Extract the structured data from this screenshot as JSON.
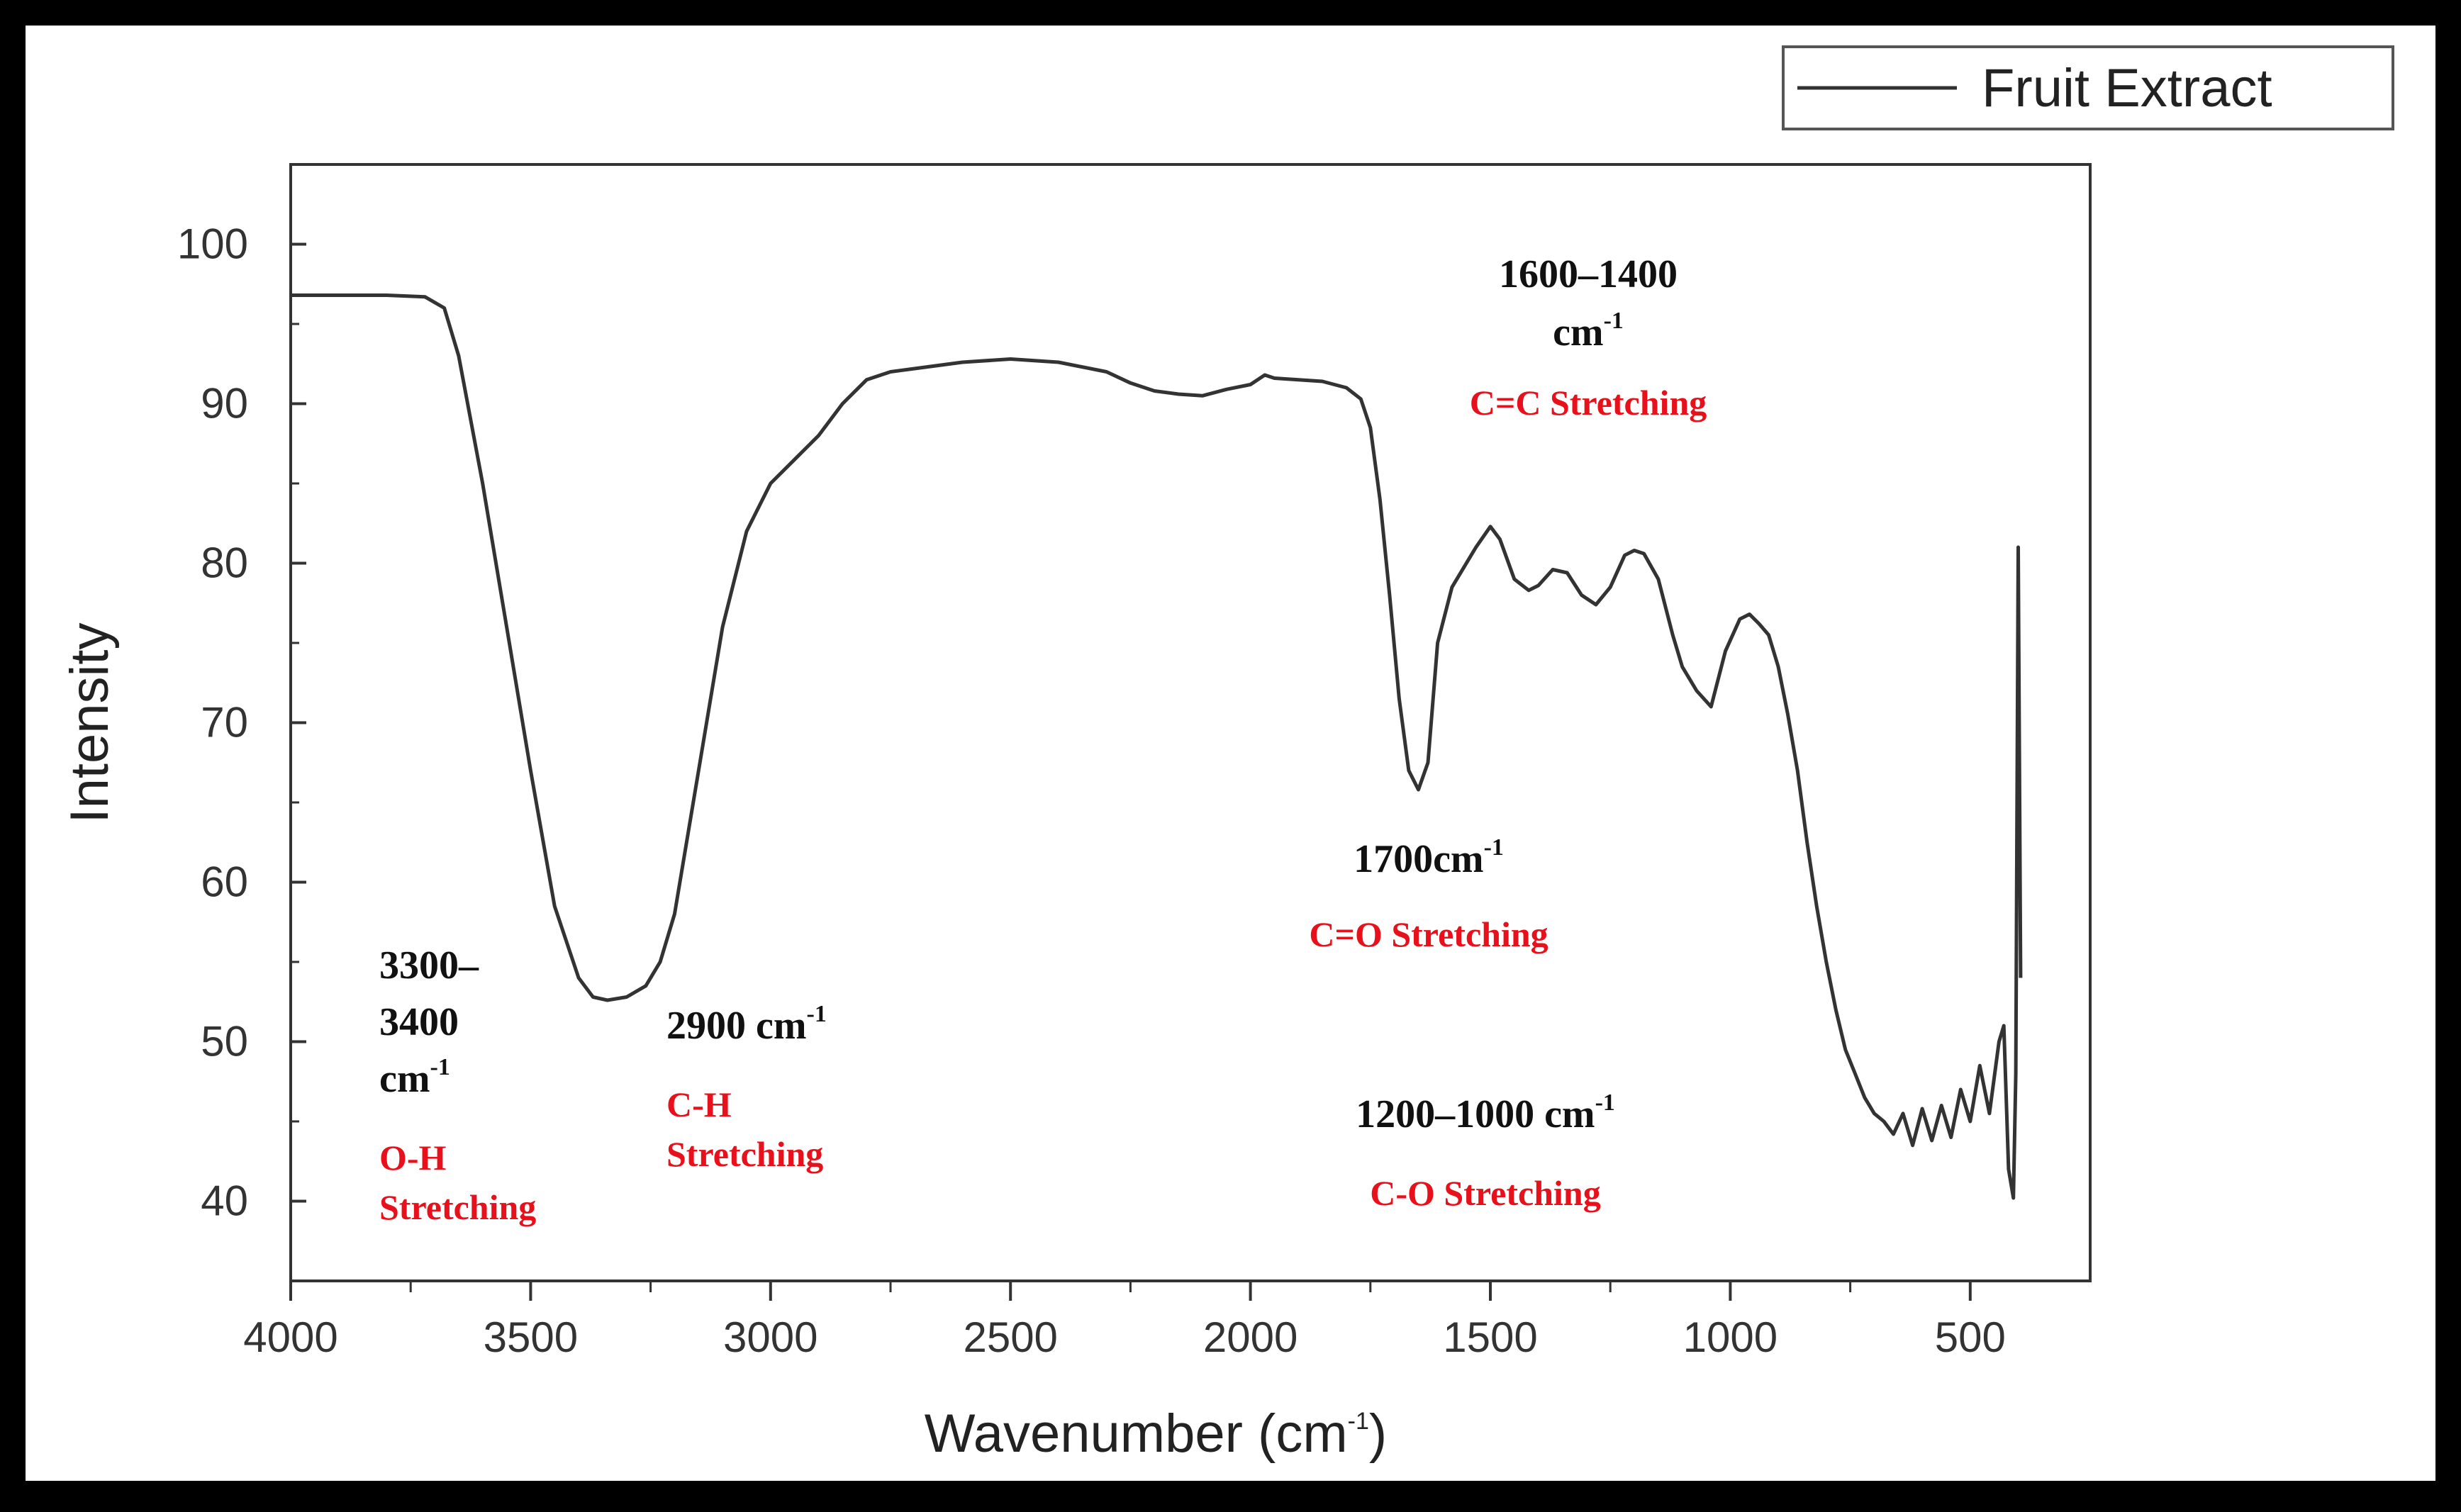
{
  "chart_data": {
    "type": "line",
    "title": "",
    "xlabel": "Wavenumber",
    "xlabel_unit_base": "(cm",
    "xlabel_unit_sup": "-1",
    "xlabel_unit_end": ")",
    "ylabel": "Intensity",
    "xlim": [
      4000,
      250
    ],
    "ylim": [
      35,
      105
    ],
    "x_reversed": true,
    "x_ticks": [
      4000,
      3500,
      3000,
      2500,
      2000,
      1500,
      1000,
      500
    ],
    "y_ticks": [
      40,
      50,
      60,
      70,
      80,
      90,
      100
    ],
    "grid": false,
    "legend_position": "top-right",
    "series": [
      {
        "name": "Fruit Extract",
        "color": "#333333",
        "x": [
          4000,
          3800,
          3720,
          3680,
          3650,
          3600,
          3550,
          3500,
          3450,
          3400,
          3370,
          3340,
          3300,
          3260,
          3230,
          3200,
          3150,
          3100,
          3050,
          3000,
          2950,
          2900,
          2850,
          2800,
          2750,
          2700,
          2600,
          2500,
          2400,
          2300,
          2250,
          2200,
          2150,
          2100,
          2050,
          2000,
          1970,
          1950,
          1900,
          1850,
          1800,
          1770,
          1750,
          1730,
          1710,
          1690,
          1670,
          1650,
          1630,
          1610,
          1580,
          1560,
          1530,
          1500,
          1480,
          1450,
          1420,
          1400,
          1370,
          1340,
          1310,
          1280,
          1250,
          1220,
          1200,
          1180,
          1150,
          1120,
          1100,
          1070,
          1040,
          1010,
          980,
          960,
          940,
          920,
          900,
          880,
          860,
          840,
          820,
          800,
          780,
          760,
          740,
          720,
          700,
          680,
          660,
          640,
          620,
          600,
          580,
          560,
          540,
          520,
          500,
          480,
          460,
          440,
          430,
          420,
          410,
          405,
          400,
          395
        ],
        "y": [
          96.8,
          96.8,
          96.7,
          96.0,
          93.0,
          85.0,
          76.0,
          67.0,
          58.5,
          54.0,
          52.8,
          52.6,
          52.8,
          53.5,
          55.0,
          58.0,
          67.0,
          76.0,
          82.0,
          85.0,
          86.5,
          88.0,
          90.0,
          91.5,
          92.0,
          92.2,
          92.6,
          92.8,
          92.6,
          92.0,
          91.3,
          90.8,
          90.6,
          90.5,
          90.9,
          91.2,
          91.8,
          91.6,
          91.5,
          91.4,
          91.0,
          90.3,
          88.5,
          84.0,
          78.0,
          71.5,
          67.0,
          65.8,
          67.5,
          75.0,
          78.5,
          79.5,
          81.0,
          82.3,
          81.5,
          79.0,
          78.3,
          78.6,
          79.6,
          79.4,
          78.0,
          77.4,
          78.5,
          80.5,
          80.8,
          80.6,
          79.0,
          75.5,
          73.5,
          72.0,
          71.0,
          74.5,
          76.5,
          76.8,
          76.2,
          75.5,
          73.5,
          70.5,
          67.0,
          62.5,
          58.5,
          55.0,
          52.0,
          49.5,
          48.0,
          46.5,
          45.5,
          45.0,
          44.2,
          45.5,
          43.5,
          45.8,
          43.8,
          46.0,
          44.0,
          47.0,
          45.0,
          48.5,
          45.5,
          50.0,
          51.0,
          42.0,
          40.2,
          48.0,
          81.0,
          54.0
        ]
      }
    ],
    "annotations": [
      {
        "label_lines": [
          "3300–",
          "3400",
          "cm"
        ],
        "sup": "-1",
        "desc_lines": [
          "O-H",
          "Stretching"
        ]
      },
      {
        "label_lines": [
          "2900 cm"
        ],
        "sup": "-1",
        "desc_lines": [
          "C-H",
          "Stretching"
        ]
      },
      {
        "label_lines": [
          "1600–1400",
          "cm"
        ],
        "sup": "-1",
        "desc_lines": [
          "C=C Stretching"
        ]
      },
      {
        "label_lines": [
          "1700cm"
        ],
        "sup": "-1",
        "desc_lines": [
          "C=O Stretching"
        ]
      },
      {
        "label_lines": [
          "1200–1000 cm"
        ],
        "sup": "-1",
        "desc_lines": [
          "C-O Stretching"
        ]
      }
    ]
  }
}
